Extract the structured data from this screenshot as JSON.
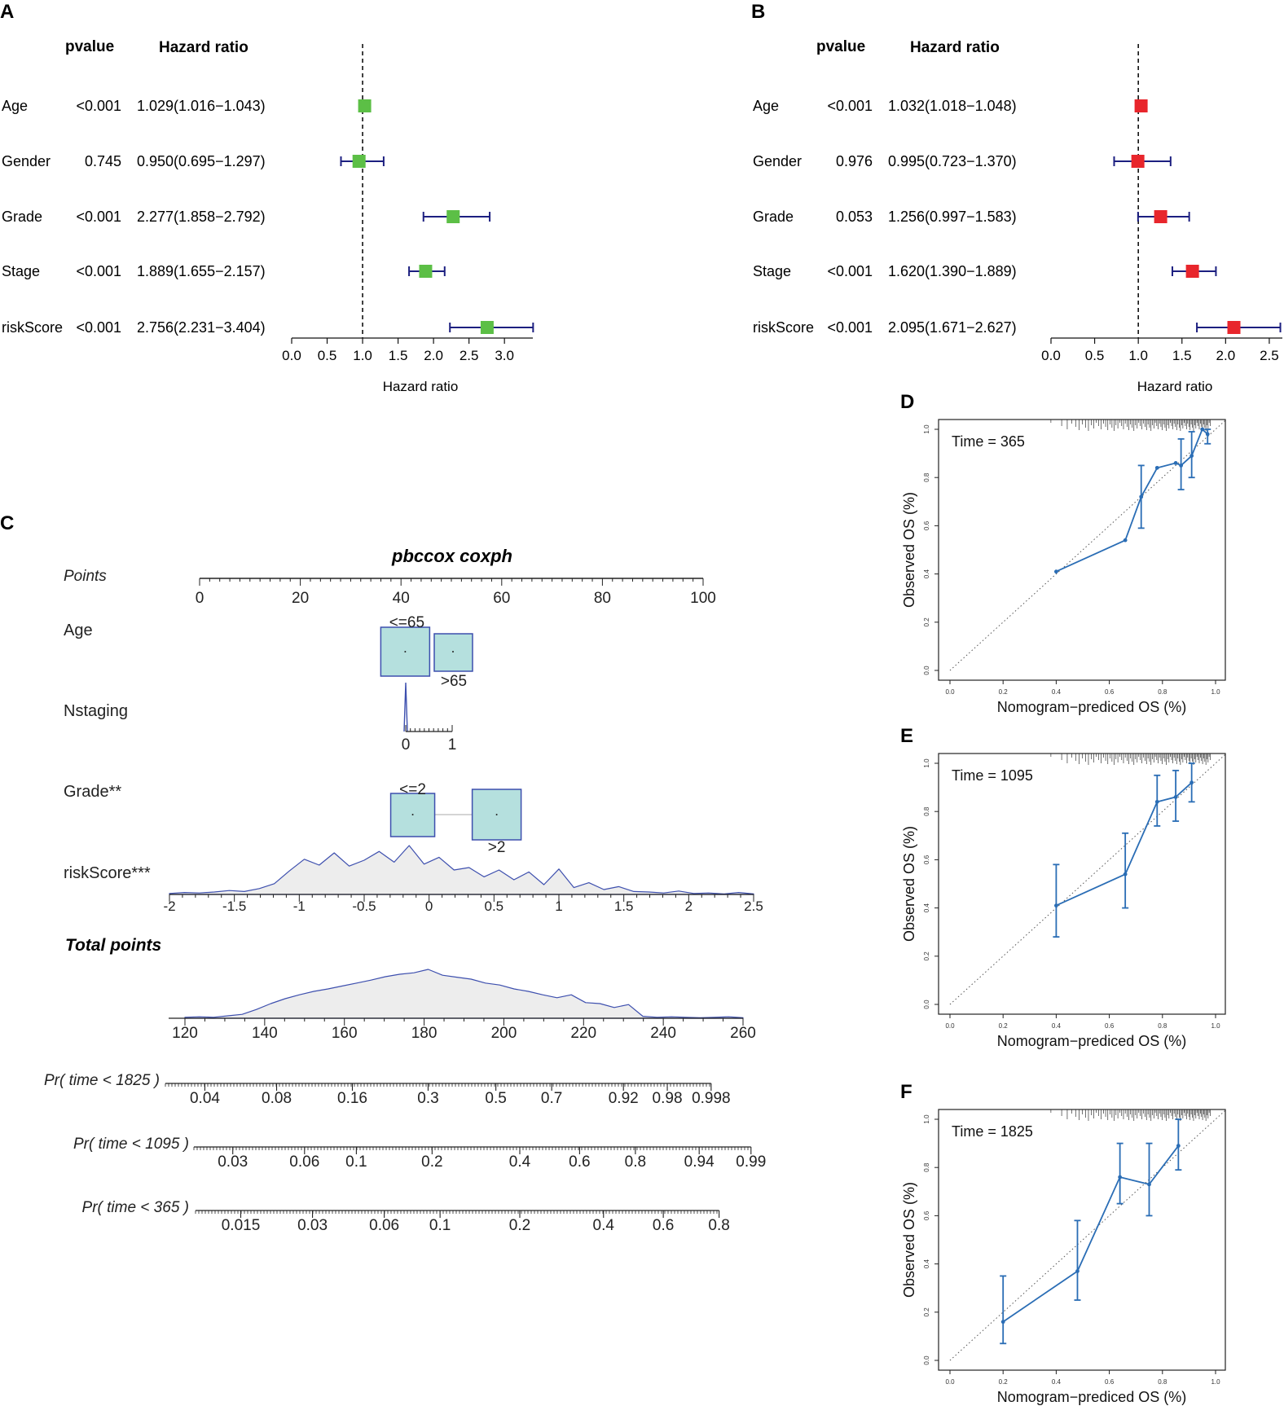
{
  "colors": {
    "forest_A_box": "#5cbf46",
    "forest_B_box": "#e8262c",
    "ci_line": "#1c1f80",
    "nomo_box_fill": "#b5e0de",
    "nomo_line": "#3d4fae",
    "density_fill": "#ededed",
    "calib_line": "#2a6db5"
  },
  "chart_data": [
    {
      "id": "A",
      "type": "forest",
      "panel_label": "A",
      "header_pvalue": "pvalue",
      "header_hr": "Hazard ratio",
      "xlabel": "Hazard ratio",
      "xlim": [
        0,
        3.4
      ],
      "ticks": [
        0.0,
        0.5,
        1.0,
        1.5,
        2.0,
        2.5,
        3.0
      ],
      "tick_labels": [
        "0.0",
        "0.5",
        "1.0",
        "1.5",
        "2.0",
        "2.5",
        "3.0"
      ],
      "ref_line": 1.0,
      "rows": [
        {
          "label": "Age",
          "pvalue": "<0.001",
          "hr_text": "1.029(1.016−1.043)",
          "hr": 1.029,
          "lo": 1.016,
          "hi": 1.043
        },
        {
          "label": "Gender",
          "pvalue": "0.745",
          "hr_text": "0.950(0.695−1.297)",
          "hr": 0.95,
          "lo": 0.695,
          "hi": 1.297
        },
        {
          "label": "Grade",
          "pvalue": "<0.001",
          "hr_text": "2.277(1.858−2.792)",
          "hr": 2.277,
          "lo": 1.858,
          "hi": 2.792
        },
        {
          "label": "Stage",
          "pvalue": "<0.001",
          "hr_text": "1.889(1.655−2.157)",
          "hr": 1.889,
          "lo": 1.655,
          "hi": 2.157
        },
        {
          "label": "riskScore",
          "pvalue": "<0.001",
          "hr_text": "2.756(2.231−3.404)",
          "hr": 2.756,
          "lo": 2.231,
          "hi": 3.404
        }
      ]
    },
    {
      "id": "B",
      "type": "forest",
      "panel_label": "B",
      "header_pvalue": "pvalue",
      "header_hr": "Hazard ratio",
      "xlabel": "Hazard ratio",
      "xlim": [
        0,
        2.65
      ],
      "ticks": [
        0.0,
        0.5,
        1.0,
        1.5,
        2.0,
        2.5
      ],
      "tick_labels": [
        "0.0",
        "0.5",
        "1.0",
        "1.5",
        "2.0",
        "2.5"
      ],
      "ref_line": 1.0,
      "rows": [
        {
          "label": "Age",
          "pvalue": "<0.001",
          "hr_text": "1.032(1.018−1.048)",
          "hr": 1.032,
          "lo": 1.018,
          "hi": 1.048
        },
        {
          "label": "Gender",
          "pvalue": "0.976",
          "hr_text": "0.995(0.723−1.370)",
          "hr": 0.995,
          "lo": 0.723,
          "hi": 1.37
        },
        {
          "label": "Grade",
          "pvalue": "0.053",
          "hr_text": "1.256(0.997−1.583)",
          "hr": 1.256,
          "lo": 0.997,
          "hi": 1.583
        },
        {
          "label": "Stage",
          "pvalue": "<0.001",
          "hr_text": "1.620(1.390−1.889)",
          "hr": 1.62,
          "lo": 1.39,
          "hi": 1.889
        },
        {
          "label": "riskScore",
          "pvalue": "<0.001",
          "hr_text": "2.095(1.671−2.627)",
          "hr": 2.095,
          "lo": 1.671,
          "hi": 2.627
        }
      ]
    },
    {
      "id": "C",
      "type": "nomogram",
      "panel_label": "C",
      "title": "pbccox coxph",
      "points_label": "Points",
      "points_ticks": [
        0,
        20,
        40,
        60,
        80,
        100
      ],
      "age": {
        "label": "Age",
        "levels": [
          "<=65",
          ">65"
        ],
        "points": [
          41,
          50
        ]
      },
      "nstaging": {
        "label": "Nstaging",
        "ticks": [
          0,
          1
        ]
      },
      "grade": {
        "label": "Grade**",
        "levels": [
          "<=2",
          ">2"
        ],
        "points": [
          42,
          59
        ]
      },
      "riskscore": {
        "label": "riskScore***",
        "range": [
          -2,
          2.5
        ],
        "ticks": [
          -2,
          -1.5,
          -1,
          -0.5,
          0,
          0.5,
          1,
          1.5,
          2,
          2.5
        ],
        "tick_labels": [
          "-2",
          "-1.5",
          "-1",
          "-0.5",
          "0",
          "0.5",
          "1",
          "1.5",
          "2",
          "2.5"
        ],
        "density": [
          0.02,
          0.04,
          0.03,
          0.05,
          0.08,
          0.06,
          0.12,
          0.22,
          0.48,
          0.72,
          0.6,
          0.85,
          0.58,
          0.7,
          0.88,
          0.66,
          1.0,
          0.62,
          0.76,
          0.5,
          0.55,
          0.36,
          0.5,
          0.3,
          0.46,
          0.2,
          0.52,
          0.14,
          0.24,
          0.1,
          0.16,
          0.06,
          0.05,
          0.03,
          0.07,
          0.02,
          0.03,
          0.01,
          0.04,
          0.01
        ]
      },
      "total": {
        "label": "Total points",
        "range": [
          120,
          260
        ],
        "ticks": [
          120,
          140,
          160,
          180,
          200,
          220,
          240,
          260
        ],
        "density": [
          0.02,
          0.03,
          0.02,
          0.05,
          0.08,
          0.18,
          0.3,
          0.4,
          0.48,
          0.55,
          0.6,
          0.66,
          0.72,
          0.78,
          0.85,
          0.9,
          0.93,
          1.0,
          0.88,
          0.84,
          0.8,
          0.72,
          0.68,
          0.6,
          0.55,
          0.48,
          0.42,
          0.48,
          0.32,
          0.3,
          0.22,
          0.28,
          0.04,
          0.02,
          0.03,
          0.02,
          0.01,
          0.02,
          0.03,
          0.01
        ]
      },
      "prob_scales": [
        {
          "label": "Pr( time < 1825 )",
          "tick_labels": [
            "0.04",
            "0.08",
            "0.16",
            "0.3",
            "0.5",
            "0.7",
            "0.92",
            "0.98",
            "0.998"
          ],
          "tick_total": [
            125,
            143,
            162,
            181,
            198,
            212,
            230,
            241,
            252
          ]
        },
        {
          "label": "Pr( time < 1095 )",
          "tick_labels": [
            "0.03",
            "0.06",
            "0.1",
            "0.2",
            "0.4",
            "0.6",
            "0.8",
            "0.94",
            "0.99"
          ],
          "tick_total": [
            132,
            150,
            163,
            182,
            204,
            219,
            233,
            249,
            262
          ]
        },
        {
          "label": "Pr( time < 365 )",
          "tick_labels": [
            "0.015",
            "0.03",
            "0.06",
            "0.1",
            "0.2",
            "0.4",
            "0.6",
            "0.8"
          ],
          "tick_total": [
            134,
            152,
            170,
            184,
            204,
            225,
            240,
            254
          ]
        }
      ]
    },
    {
      "id": "D",
      "type": "line",
      "panel_label": "D",
      "annotation": "Time = 365",
      "xlabel": "Nomogram−prediced OS (%)",
      "ylabel": "Observed OS (%)",
      "xlim": [
        0,
        1
      ],
      "ylim": [
        0,
        1
      ],
      "ticks": [
        "0.0",
        "0.2",
        "0.4",
        "0.6",
        "0.8",
        "1.0"
      ],
      "points": [
        {
          "x": 0.4,
          "y": 0.41,
          "lo": 0.41,
          "hi": 0.41
        },
        {
          "x": 0.66,
          "y": 0.54,
          "lo": 0.54,
          "hi": 0.54
        },
        {
          "x": 0.72,
          "y": 0.72,
          "lo": 0.59,
          "hi": 0.85
        },
        {
          "x": 0.78,
          "y": 0.84,
          "lo": 0.84,
          "hi": 0.84
        },
        {
          "x": 0.85,
          "y": 0.86,
          "lo": 0.86,
          "hi": 0.86
        },
        {
          "x": 0.87,
          "y": 0.85,
          "lo": 0.75,
          "hi": 0.96
        },
        {
          "x": 0.91,
          "y": 0.89,
          "lo": 0.8,
          "hi": 0.99
        },
        {
          "x": 0.95,
          "y": 1.0,
          "lo": 1.0,
          "hi": 1.0
        },
        {
          "x": 0.97,
          "y": 0.98,
          "lo": 0.94,
          "hi": 1.0
        }
      ]
    },
    {
      "id": "E",
      "type": "line",
      "panel_label": "E",
      "annotation": "Time = 1095",
      "xlabel": "Nomogram−prediced OS (%)",
      "ylabel": "Observed OS (%)",
      "xlim": [
        0,
        1
      ],
      "ylim": [
        0,
        1
      ],
      "ticks": [
        "0.0",
        "0.2",
        "0.4",
        "0.6",
        "0.8",
        "1.0"
      ],
      "points": [
        {
          "x": 0.4,
          "y": 0.41,
          "lo": 0.28,
          "hi": 0.58
        },
        {
          "x": 0.66,
          "y": 0.54,
          "lo": 0.4,
          "hi": 0.71
        },
        {
          "x": 0.78,
          "y": 0.84,
          "lo": 0.74,
          "hi": 0.95
        },
        {
          "x": 0.85,
          "y": 0.86,
          "lo": 0.76,
          "hi": 0.97
        },
        {
          "x": 0.91,
          "y": 0.92,
          "lo": 0.84,
          "hi": 1.0
        }
      ]
    },
    {
      "id": "F",
      "type": "line",
      "panel_label": "F",
      "annotation": "Time = 1825",
      "xlabel": "Nomogram−prediced OS (%)",
      "ylabel": "Observed OS (%)",
      "xlim": [
        0,
        1
      ],
      "ylim": [
        0,
        1
      ],
      "ticks": [
        "0.0",
        "0.2",
        "0.4",
        "0.6",
        "0.8",
        "1.0"
      ],
      "points": [
        {
          "x": 0.2,
          "y": 0.16,
          "lo": 0.07,
          "hi": 0.35
        },
        {
          "x": 0.48,
          "y": 0.37,
          "lo": 0.25,
          "hi": 0.58
        },
        {
          "x": 0.64,
          "y": 0.76,
          "lo": 0.65,
          "hi": 0.9
        },
        {
          "x": 0.75,
          "y": 0.73,
          "lo": 0.6,
          "hi": 0.9
        },
        {
          "x": 0.86,
          "y": 0.89,
          "lo": 0.79,
          "hi": 1.0
        }
      ]
    }
  ]
}
